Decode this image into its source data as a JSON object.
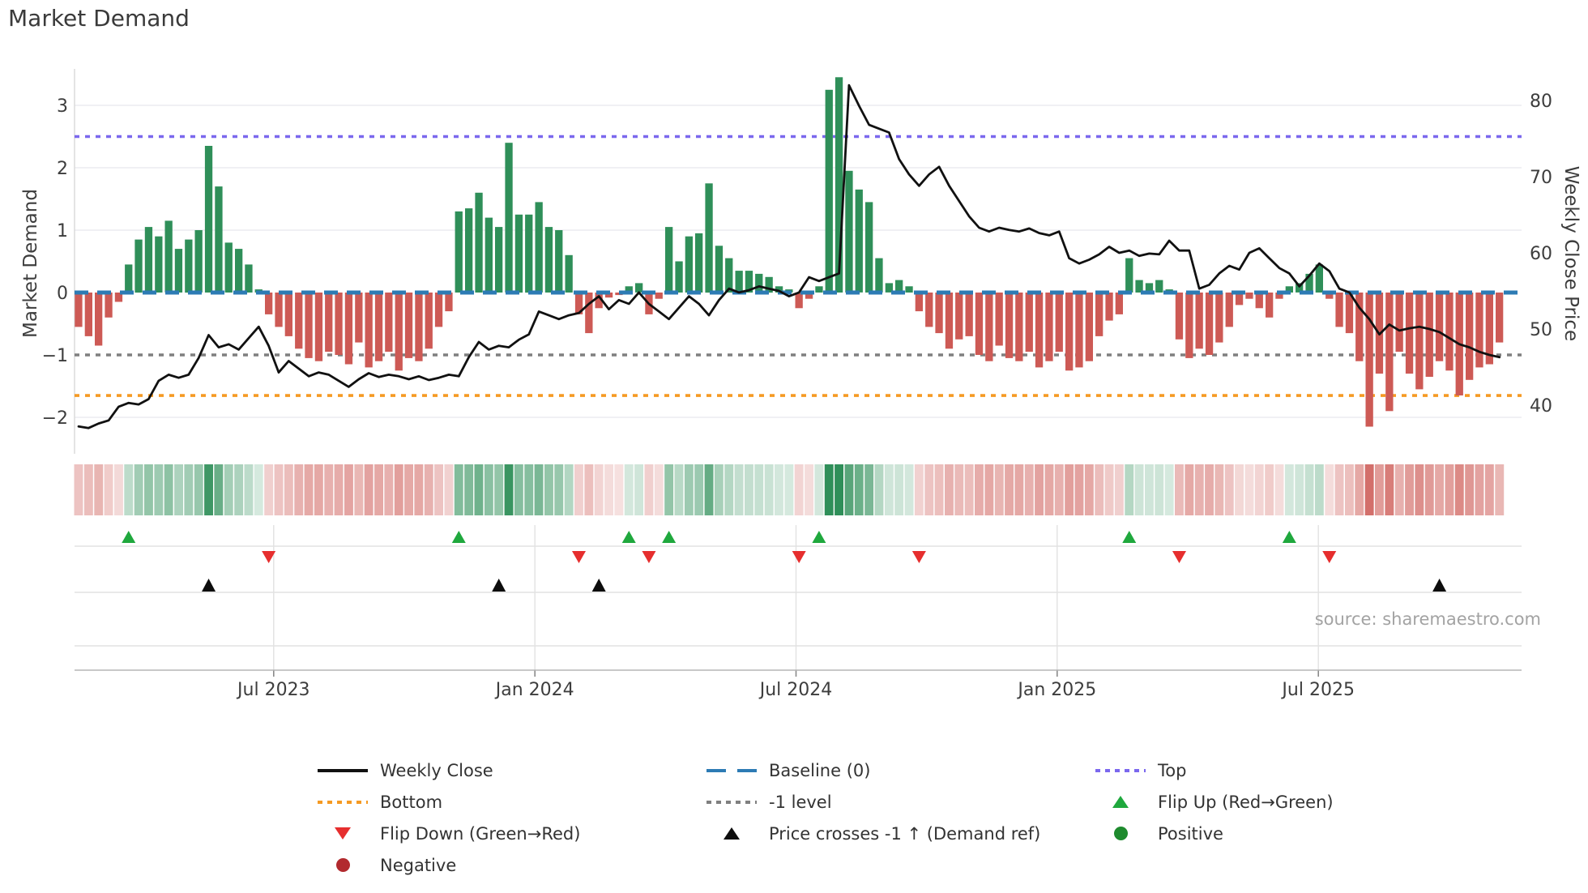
{
  "title": "Market Demand",
  "source_text": "source: sharemaestro.com",
  "axes": {
    "left_label": "Market Demand",
    "right_label": "Weekly Close Price",
    "left_ticks": [
      3,
      2,
      1,
      0,
      -1,
      -2
    ],
    "right_ticks": [
      80,
      70,
      60,
      50,
      40
    ],
    "x_tick_labels": [
      "Jul 2023",
      "Jan 2024",
      "Jul 2024",
      "Jan 2025",
      "Jul 2025"
    ],
    "x_tick_weeks": [
      19.5,
      45.6,
      71.7,
      97.8,
      123.9
    ]
  },
  "colors": {
    "positive_bar": "#2f8f59",
    "negative_bar": "#cd5a55",
    "price_line": "#111111",
    "baseline": "#2d7bb4",
    "top_line": "#7b68ee",
    "bottom_line": "#f59a23",
    "minus_one_line": "#7f7f7f",
    "flip_up": "#1fa83d",
    "flip_down": "#e62e2e",
    "price_cross": "#0d0d0d",
    "positive_dot": "#1e8b2e",
    "negative_dot": "#b22a2e",
    "grid": "#ececf1",
    "panel_grid": "#d8d8d8",
    "spine": "#b5b5b5"
  },
  "legend": {
    "items": [
      {
        "key": "weekly-close",
        "label": "Weekly Close",
        "type": "line",
        "color": "#111111"
      },
      {
        "key": "baseline",
        "label": "Baseline (0)",
        "type": "dash",
        "color": "#2d7bb4"
      },
      {
        "key": "top",
        "label": "Top",
        "type": "dot",
        "color": "#7b68ee"
      },
      {
        "key": "bottom",
        "label": "Bottom",
        "type": "dot",
        "color": "#f59a23"
      },
      {
        "key": "minus-1",
        "label": "-1 level",
        "type": "dot",
        "color": "#7f7f7f"
      },
      {
        "key": "flip-up",
        "label": "Flip Up (Red→Green)",
        "type": "tri-up",
        "color": "#1fa83d"
      },
      {
        "key": "flip-down",
        "label": "Flip Down (Green→Red)",
        "type": "tri-down",
        "color": "#e62e2e"
      },
      {
        "key": "price-cross",
        "label": "Price crosses -1 ↑ (Demand ref)",
        "type": "tri-up",
        "color": "#0d0d0d"
      },
      {
        "key": "positive",
        "label": "Positive",
        "type": "circle",
        "color": "#1e8b2e"
      },
      {
        "key": "negative",
        "label": "Negative",
        "type": "circle",
        "color": "#b22a2e"
      }
    ]
  },
  "chart_data": {
    "type": "bar+line",
    "title": "Market Demand",
    "x_unit": "week_index",
    "demand_ylim": [
      -2.6,
      3.6
    ],
    "price_ylim": [
      33.5,
      84
    ],
    "ref_lines": {
      "baseline": 0,
      "top": 2.5,
      "bottom": -1.65,
      "minus_one": -1
    },
    "series": [
      {
        "name": "Market Demand (bars)",
        "axis": "left",
        "values": [
          -0.55,
          -0.7,
          -0.85,
          -0.4,
          -0.15,
          0.45,
          0.85,
          1.05,
          0.9,
          1.15,
          0.7,
          0.85,
          1.0,
          2.35,
          1.7,
          0.8,
          0.7,
          0.45,
          0.05,
          -0.35,
          -0.55,
          -0.7,
          -0.9,
          -1.05,
          -1.1,
          -0.95,
          -1.0,
          -1.15,
          -0.8,
          -1.2,
          -1.1,
          -0.95,
          -1.25,
          -1.05,
          -1.1,
          -0.9,
          -0.55,
          -0.3,
          1.3,
          1.35,
          1.6,
          1.2,
          1.05,
          2.4,
          1.25,
          1.25,
          1.45,
          1.05,
          1.0,
          0.6,
          -0.35,
          -0.65,
          -0.25,
          -0.08,
          -0.04,
          0.1,
          0.15,
          -0.35,
          -0.1,
          1.05,
          0.5,
          0.9,
          0.95,
          1.75,
          0.75,
          0.55,
          0.35,
          0.35,
          0.3,
          0.25,
          0.1,
          0.05,
          -0.25,
          -0.1,
          0.1,
          3.25,
          3.45,
          1.95,
          1.65,
          1.45,
          0.55,
          0.15,
          0.2,
          0.1,
          -0.3,
          -0.55,
          -0.65,
          -0.9,
          -0.75,
          -0.7,
          -1.0,
          -1.1,
          -0.85,
          -1.05,
          -1.1,
          -0.95,
          -1.2,
          -1.1,
          -0.95,
          -1.25,
          -1.2,
          -1.1,
          -0.7,
          -0.45,
          -0.35,
          0.55,
          0.2,
          0.15,
          0.2,
          0.05,
          -0.75,
          -1.05,
          -0.9,
          -1.0,
          -0.8,
          -0.55,
          -0.2,
          -0.1,
          -0.25,
          -0.4,
          -0.1,
          0.1,
          0.15,
          0.3,
          0.45,
          -0.1,
          -0.55,
          -0.65,
          -1.1,
          -2.15,
          -1.3,
          -1.9,
          -0.95,
          -1.3,
          -1.55,
          -1.35,
          -1.1,
          -1.25,
          -1.65,
          -1.4,
          -1.2,
          -1.15,
          -0.8
        ]
      },
      {
        "name": "Weekly Close (line)",
        "axis": "right",
        "values": [
          37.2,
          37.0,
          37.6,
          38.0,
          39.8,
          40.3,
          40.1,
          40.8,
          43.2,
          44.0,
          43.6,
          44.0,
          46.2,
          49.2,
          47.6,
          48.0,
          47.3,
          48.8,
          50.3,
          47.8,
          44.3,
          45.8,
          44.8,
          43.8,
          44.3,
          44.0,
          43.2,
          42.4,
          43.4,
          44.2,
          43.7,
          44.0,
          43.8,
          43.4,
          43.8,
          43.3,
          43.6,
          44.0,
          43.8,
          46.3,
          48.3,
          47.3,
          47.8,
          47.6,
          48.6,
          49.3,
          52.3,
          51.8,
          51.3,
          51.8,
          52.1,
          53.3,
          54.3,
          52.6,
          53.8,
          53.3,
          54.8,
          53.3,
          52.3,
          51.3,
          52.8,
          54.3,
          53.3,
          51.8,
          53.8,
          55.3,
          54.8,
          55.1,
          55.6,
          55.3,
          55.0,
          54.3,
          54.8,
          56.8,
          56.3,
          56.8,
          57.3,
          82.0,
          79.3,
          76.8,
          76.3,
          75.8,
          72.3,
          70.3,
          68.8,
          70.3,
          71.3,
          68.8,
          66.8,
          64.8,
          63.3,
          62.8,
          63.3,
          63.0,
          62.8,
          63.2,
          62.6,
          62.3,
          62.8,
          59.3,
          58.6,
          59.1,
          59.8,
          60.8,
          60.0,
          60.3,
          59.6,
          59.9,
          59.8,
          61.6,
          60.3,
          60.3,
          55.3,
          55.8,
          57.3,
          58.3,
          57.8,
          60.0,
          60.6,
          59.3,
          58.0,
          57.3,
          55.6,
          57.0,
          58.6,
          57.6,
          55.3,
          54.8,
          52.8,
          51.3,
          49.3,
          50.6,
          49.8,
          50.1,
          50.3,
          50.0,
          49.6,
          48.8,
          48.0,
          47.6,
          47.0,
          46.6,
          46.3
        ]
      }
    ],
    "markers": {
      "flip_up_weeks": [
        5,
        38,
        55,
        59,
        74,
        105,
        121
      ],
      "flip_down_weeks": [
        19,
        50,
        57,
        72,
        84,
        110,
        125
      ],
      "price_cross_weeks": [
        13,
        42,
        52,
        136
      ]
    },
    "heatmap": "same sign/intensity as demand bars, green positive / red negative"
  }
}
